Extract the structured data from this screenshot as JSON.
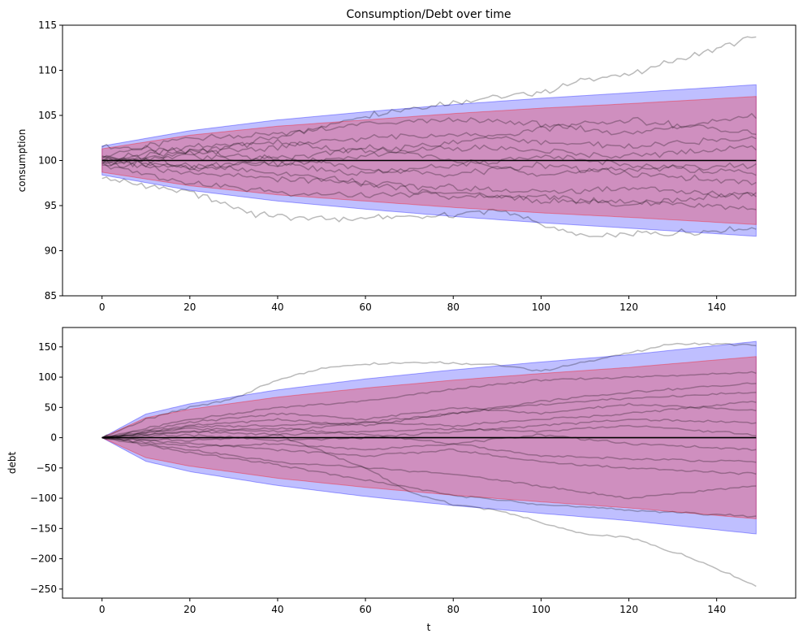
{
  "chart_data": [
    {
      "type": "line",
      "title": "Consumption/Debt over time",
      "xlabel": "",
      "ylabel": "consumption",
      "xlim": [
        -9,
        158
      ],
      "ylim": [
        85,
        115
      ],
      "xticks": [
        0,
        20,
        40,
        60,
        80,
        100,
        120,
        140
      ],
      "yticks": [
        85,
        90,
        95,
        100,
        105,
        110,
        115
      ],
      "t_end": 149,
      "mean": 100,
      "bands": [
        {
          "color": "#0000ff",
          "alpha": 0.25,
          "upper": {
            "t": [
              0,
              20,
              40,
              60,
              80,
              100,
              120,
              149
            ],
            "v": [
              101.6,
              103.3,
              104.5,
              105.4,
              106.2,
              106.9,
              107.5,
              108.4
            ]
          },
          "lower": {
            "t": [
              0,
              20,
              40,
              60,
              80,
              100,
              120,
              149
            ],
            "v": [
              98.4,
              96.7,
              95.5,
              94.6,
              93.8,
              93.1,
              92.5,
              91.6
            ]
          }
        },
        {
          "color": "#ff0000",
          "alpha": 0.25,
          "upper": {
            "t": [
              0,
              20,
              40,
              60,
              80,
              100,
              120,
              149
            ],
            "v": [
              101.3,
              102.8,
              103.8,
              104.5,
              105.2,
              105.8,
              106.3,
              107.1
            ]
          },
          "lower": {
            "t": [
              0,
              20,
              40,
              60,
              80,
              100,
              120,
              149
            ],
            "v": [
              98.7,
              97.2,
              96.2,
              95.5,
              94.8,
              94.2,
              93.7,
              92.9
            ]
          }
        }
      ],
      "paths": [
        {
          "t": [
            0,
            20,
            40,
            60,
            80,
            100,
            110,
            120,
            130,
            149
          ],
          "v": [
            101.5,
            101,
            102.5,
            105,
            106.5,
            107.5,
            109,
            109.5,
            111,
            113.7
          ]
        },
        {
          "t": [
            0,
            20,
            35,
            50,
            75,
            90,
            110,
            130,
            149
          ],
          "v": [
            98,
            96.5,
            94,
            93.5,
            93.8,
            94.5,
            91.5,
            92,
            92.5
          ]
        },
        {
          "t": [
            0,
            20,
            40,
            60,
            80,
            100,
            120,
            149
          ],
          "v": [
            100.5,
            102.5,
            103,
            104,
            104.5,
            104,
            103,
            105
          ]
        },
        {
          "t": [
            0,
            20,
            40,
            60,
            80,
            100,
            120,
            149
          ],
          "v": [
            99.5,
            97.5,
            96.5,
            96,
            96.5,
            95.5,
            95.5,
            94.5
          ]
        },
        {
          "t": [
            0,
            20,
            40,
            60,
            80,
            100,
            120,
            149
          ],
          "v": [
            100.2,
            101.5,
            102,
            101,
            102,
            103.5,
            104.5,
            103
          ]
        },
        {
          "t": [
            0,
            20,
            40,
            60,
            80,
            100,
            120,
            149
          ],
          "v": [
            99.8,
            98.5,
            98,
            97.5,
            97,
            96.5,
            97,
            96
          ]
        },
        {
          "t": [
            0,
            20,
            40,
            60,
            80,
            100,
            120,
            149
          ],
          "v": [
            100,
            100.5,
            99.5,
            100.5,
            101.5,
            101,
            100.5,
            101.5
          ]
        },
        {
          "t": [
            0,
            20,
            40,
            60,
            80,
            100,
            120,
            149
          ],
          "v": [
            100.1,
            99,
            100.5,
            99,
            98.5,
            99.5,
            98.5,
            97.5
          ]
        },
        {
          "t": [
            0,
            20,
            40,
            60,
            80,
            100,
            120,
            149
          ],
          "v": [
            99.6,
            100.8,
            101.5,
            102.5,
            103,
            102,
            101.5,
            102.5
          ]
        },
        {
          "t": [
            0,
            20,
            40,
            60,
            80,
            100,
            120,
            149
          ],
          "v": [
            100.4,
            99.5,
            98.5,
            97.5,
            96,
            96,
            95,
            96.5
          ]
        },
        {
          "t": [
            0,
            20,
            40,
            60,
            80,
            100,
            120,
            149
          ],
          "v": [
            100,
            101,
            100,
            101.5,
            100,
            98.5,
            99,
            99.5
          ]
        },
        {
          "t": [
            0,
            20,
            40,
            60,
            80,
            100,
            120,
            149
          ],
          "v": [
            99.9,
            99.3,
            99.5,
            98.5,
            99.5,
            100.5,
            99.5,
            98.5
          ]
        }
      ]
    },
    {
      "type": "line",
      "title": "",
      "xlabel": "t",
      "ylabel": "debt",
      "xlim": [
        -9,
        158
      ],
      "ylim": [
        -265,
        182
      ],
      "xticks": [
        0,
        20,
        40,
        60,
        80,
        100,
        120,
        140
      ],
      "yticks": [
        -250,
        -200,
        -150,
        -100,
        -50,
        0,
        50,
        100,
        150
      ],
      "t_end": 149,
      "mean": 0,
      "bands": [
        {
          "color": "#0000ff",
          "alpha": 0.25,
          "upper": {
            "t": [
              0,
              10,
              20,
              40,
              60,
              80,
              100,
              120,
              149
            ],
            "v": [
              0,
              39,
              56,
              79,
              97,
              112,
              125,
              137,
              159
            ]
          },
          "lower": {
            "t": [
              0,
              10,
              20,
              40,
              60,
              80,
              100,
              120,
              149
            ],
            "v": [
              0,
              -39,
              -56,
              -79,
              -97,
              -112,
              -125,
              -137,
              -159
            ]
          }
        },
        {
          "color": "#ff0000",
          "alpha": 0.25,
          "upper": {
            "t": [
              0,
              10,
              20,
              40,
              60,
              80,
              100,
              120,
              149
            ],
            "v": [
              0,
              33,
              47,
              67,
              82,
              95,
              106,
              116,
              134
            ]
          },
          "lower": {
            "t": [
              0,
              10,
              20,
              40,
              60,
              80,
              100,
              120,
              149
            ],
            "v": [
              0,
              -33,
              -47,
              -67,
              -82,
              -95,
              -106,
              -116,
              -134
            ]
          }
        }
      ],
      "paths": [
        {
          "t": [
            0,
            10,
            20,
            30,
            40,
            50,
            60,
            75,
            90,
            100,
            120,
            130,
            140,
            149
          ],
          "v": [
            0,
            30,
            50,
            65,
            95,
            115,
            122,
            125,
            120,
            110,
            140,
            155,
            155,
            152
          ]
        },
        {
          "t": [
            0,
            20,
            40,
            60,
            70,
            80,
            90,
            100,
            110,
            120,
            135,
            149
          ],
          "v": [
            0,
            10,
            5,
            -50,
            -90,
            -110,
            -120,
            -140,
            -160,
            -165,
            -200,
            -245
          ]
        },
        {
          "t": [
            0,
            20,
            40,
            60,
            80,
            100,
            120,
            149
          ],
          "v": [
            0,
            30,
            50,
            60,
            80,
            95,
            100,
            108
          ]
        },
        {
          "t": [
            0,
            20,
            40,
            60,
            80,
            100,
            120,
            149
          ],
          "v": [
            0,
            -20,
            -40,
            -50,
            -60,
            -80,
            -100,
            -80
          ]
        },
        {
          "t": [
            0,
            20,
            40,
            60,
            80,
            100,
            120,
            149
          ],
          "v": [
            0,
            20,
            30,
            20,
            40,
            60,
            75,
            90
          ]
        },
        {
          "t": [
            0,
            20,
            40,
            60,
            80,
            100,
            120,
            149
          ],
          "v": [
            0,
            -10,
            -20,
            -30,
            -20,
            -40,
            -50,
            -60
          ]
        },
        {
          "t": [
            0,
            20,
            40,
            60,
            80,
            100,
            120,
            149
          ],
          "v": [
            0,
            15,
            10,
            25,
            20,
            30,
            40,
            60
          ]
        },
        {
          "t": [
            0,
            20,
            40,
            60,
            80,
            100,
            120,
            149
          ],
          "v": [
            0,
            -15,
            -10,
            -20,
            -10,
            5,
            -10,
            -20
          ]
        },
        {
          "t": [
            0,
            20,
            40,
            60,
            80,
            100,
            120,
            149
          ],
          "v": [
            0,
            25,
            40,
            30,
            50,
            40,
            55,
            45
          ]
        },
        {
          "t": [
            0,
            20,
            40,
            60,
            80,
            100,
            120,
            149
          ],
          "v": [
            0,
            5,
            -5,
            0,
            10,
            20,
            30,
            25
          ]
        },
        {
          "t": [
            0,
            20,
            40,
            60,
            80,
            100,
            120,
            149
          ],
          "v": [
            0,
            -25,
            -45,
            -70,
            -95,
            -110,
            -120,
            -130
          ]
        },
        {
          "t": [
            0,
            20,
            40,
            60,
            80,
            100,
            120,
            149
          ],
          "v": [
            0,
            10,
            15,
            5,
            -10,
            -30,
            -35,
            -40
          ]
        },
        {
          "t": [
            0,
            20,
            40,
            60,
            80,
            100,
            120,
            149
          ],
          "v": [
            0,
            18,
            20,
            25,
            40,
            55,
            65,
            75
          ]
        },
        {
          "t": [
            0,
            20,
            40,
            60,
            80,
            100,
            120,
            149
          ],
          "v": [
            0,
            -5,
            5,
            10,
            15,
            10,
            20,
            5
          ]
        }
      ]
    }
  ]
}
